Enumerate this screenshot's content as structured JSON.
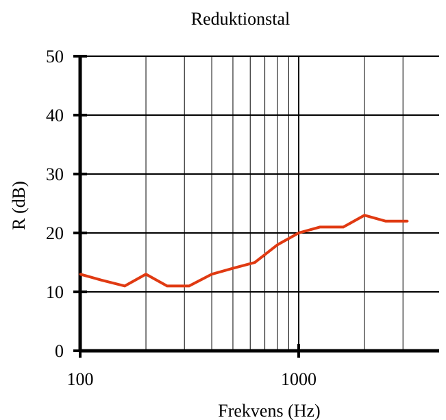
{
  "chart_data": {
    "type": "line",
    "title": "Reduktionstal",
    "xlabel": "Frekvens (Hz)",
    "ylabel": "R (dB)",
    "xscale": "log",
    "xlim": [
      100,
      4000
    ],
    "ylim": [
      0,
      50
    ],
    "grid": true,
    "x_tick_labels": [
      "100",
      "1000"
    ],
    "y_tick_labels": [
      "0",
      "10",
      "20",
      "30",
      "40",
      "50"
    ],
    "series": [
      {
        "color": "#e03a12",
        "x": [
          100,
          125,
          160,
          200,
          250,
          315,
          400,
          500,
          630,
          800,
          1000,
          1250,
          1600,
          2000,
          2500,
          3150
        ],
        "y": [
          13,
          12,
          11,
          13,
          11,
          11,
          13,
          14,
          15,
          18,
          20,
          21,
          21,
          23,
          22,
          22
        ]
      }
    ]
  }
}
